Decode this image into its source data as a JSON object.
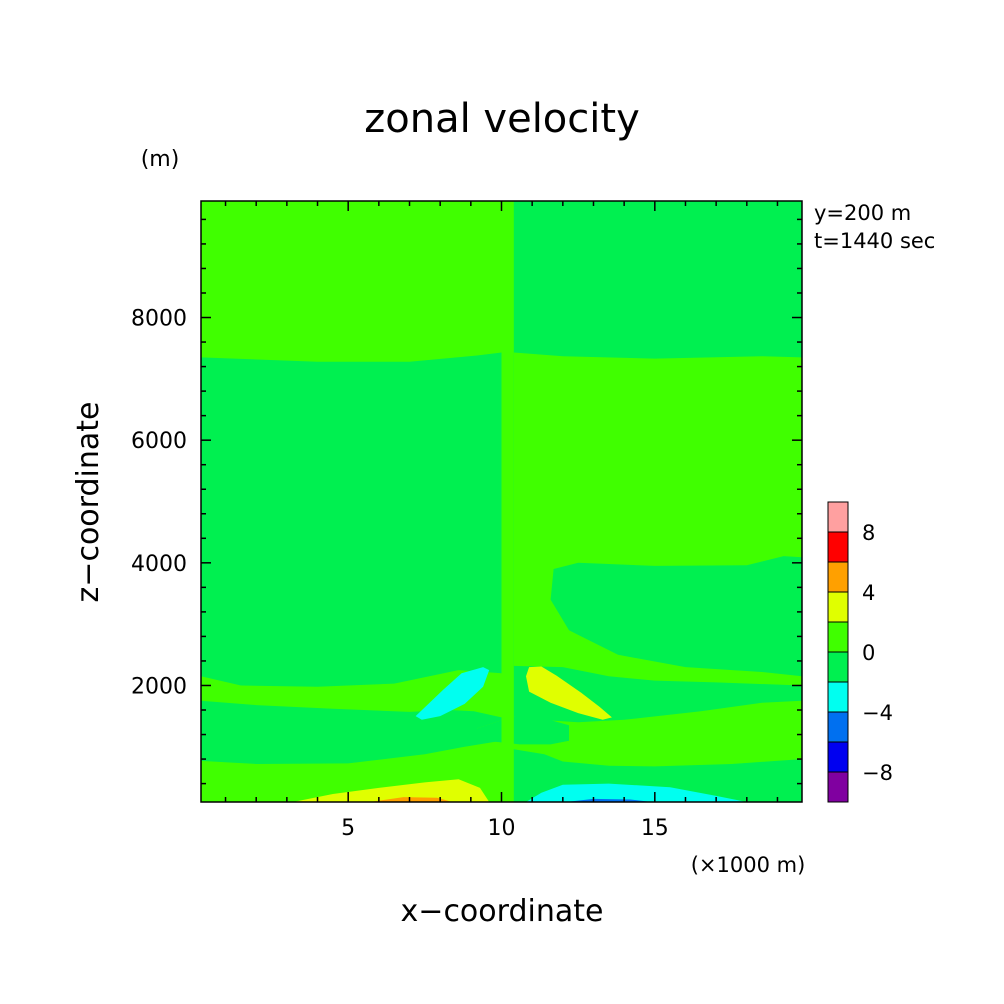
{
  "chart_data": {
    "type": "heatmap",
    "title": "zonal velocity",
    "xlabel": "x−coordinate",
    "ylabel": "z−coordinate",
    "x_unit": "(×1000 m)",
    "y_unit": "(m)",
    "info_lines": [
      "y=200 m",
      "t=1440 sec"
    ],
    "x_range": [
      0.2,
      19.8
    ],
    "y_range": [
      100,
      9900
    ],
    "x_ticks": [
      5,
      10,
      15
    ],
    "x_tick_labels": [
      "5",
      "10",
      "15"
    ],
    "y_ticks": [
      2000,
      4000,
      6000,
      8000
    ],
    "y_tick_labels": [
      "2000",
      "4000",
      "6000",
      "8000"
    ],
    "colorbar": {
      "levels": [
        -10,
        -8,
        -6,
        -4,
        -2,
        0,
        2,
        4,
        6,
        8,
        10
      ],
      "colors": [
        "#8000A0",
        "#0000F0",
        "#0070F0",
        "#00FFF0",
        "#00F050",
        "#40FF00",
        "#E0FF00",
        "#FFA000",
        "#FF0000",
        "#FFA0A0"
      ],
      "tick_values": [
        -8,
        -4,
        0,
        4,
        8
      ],
      "tick_labels": [
        "−8",
        "−4",
        "0",
        "4",
        "8"
      ]
    },
    "regions": [
      {
        "color": "#40FF00",
        "points": [
          [
            0.2,
            100
          ],
          [
            10.2,
            100
          ],
          [
            10.2,
            9900
          ],
          [
            0.2,
            9900
          ]
        ]
      },
      {
        "color": "#00F050",
        "points": [
          [
            10.2,
            100
          ],
          [
            19.8,
            100
          ],
          [
            19.8,
            9900
          ],
          [
            10.2,
            9900
          ]
        ]
      },
      {
        "color": "#00F050",
        "points": [
          [
            0.2,
            7350
          ],
          [
            4,
            7280
          ],
          [
            7,
            7280
          ],
          [
            9.2,
            7380
          ],
          [
            10,
            7430
          ],
          [
            10,
            7020
          ],
          [
            10,
            2200
          ],
          [
            8.6,
            2250
          ],
          [
            6.5,
            2030
          ],
          [
            4,
            1980
          ],
          [
            1.5,
            2000
          ],
          [
            0.2,
            2150
          ],
          [
            0.2,
            3800
          ],
          [
            0.9,
            4090
          ],
          [
            1.3,
            4100
          ],
          [
            4.3,
            4000
          ],
          [
            7.5,
            3950
          ],
          [
            8.4,
            3700
          ],
          [
            8.3,
            3000
          ],
          [
            7.5,
            2500
          ],
          [
            6,
            2350
          ],
          [
            4,
            2250
          ],
          [
            2,
            2250
          ],
          [
            0.2,
            2200
          ],
          [
            0.2,
            4050
          ],
          [
            0.2,
            7350
          ]
        ]
      },
      {
        "color": "#40FF00",
        "points": [
          [
            10.4,
            7430
          ],
          [
            12,
            7370
          ],
          [
            15,
            7330
          ],
          [
            18.5,
            7370
          ],
          [
            19.8,
            7350
          ],
          [
            19.8,
            4090
          ],
          [
            19.2,
            4110
          ],
          [
            18,
            3960
          ],
          [
            15,
            3950
          ],
          [
            12.5,
            4000
          ],
          [
            11.7,
            3900
          ],
          [
            11.6,
            3400
          ],
          [
            12.2,
            2900
          ],
          [
            13.8,
            2500
          ],
          [
            16,
            2300
          ],
          [
            18.5,
            2220
          ],
          [
            19.8,
            2150
          ],
          [
            19.8,
            2000
          ],
          [
            17,
            2050
          ],
          [
            15,
            2080
          ],
          [
            13.5,
            2150
          ],
          [
            12,
            2300
          ],
          [
            10.4,
            2320
          ]
        ]
      },
      {
        "color": "#00F050",
        "points": [
          [
            0.2,
            1750
          ],
          [
            2,
            1680
          ],
          [
            4.5,
            1620
          ],
          [
            7,
            1570
          ],
          [
            8.3,
            1600
          ],
          [
            9.1,
            1580
          ],
          [
            10,
            1480
          ],
          [
            10,
            1100
          ],
          [
            8.8,
            1000
          ],
          [
            7.5,
            880
          ],
          [
            5,
            730
          ],
          [
            2,
            720
          ],
          [
            0.2,
            770
          ]
        ]
      },
      {
        "color": "#40FF00",
        "points": [
          [
            9.2,
            1300
          ],
          [
            10.4,
            1500
          ],
          [
            11.2,
            1440
          ],
          [
            12.5,
            1400
          ],
          [
            14,
            1440
          ],
          [
            16.5,
            1580
          ],
          [
            18.5,
            1720
          ],
          [
            19.8,
            1750
          ],
          [
            19.8,
            800
          ],
          [
            17.5,
            720
          ],
          [
            15,
            680
          ],
          [
            13.5,
            690
          ],
          [
            12,
            760
          ],
          [
            11.4,
            880
          ],
          [
            10.4,
            960
          ]
        ]
      },
      {
        "color": "#00F050",
        "points": [
          [
            8.4,
            1240
          ],
          [
            9.2,
            1300
          ],
          [
            10.4,
            1500
          ],
          [
            11.5,
            1450
          ],
          [
            12.2,
            1350
          ],
          [
            12.2,
            1100
          ],
          [
            11.6,
            1040
          ],
          [
            10.6,
            1040
          ],
          [
            9.5,
            1100
          ],
          [
            8.5,
            1150
          ]
        ]
      },
      {
        "color": "#00FFF0",
        "points": [
          [
            7.2,
            1500
          ],
          [
            8.1,
            1930
          ],
          [
            8.7,
            2200
          ],
          [
            9.4,
            2300
          ],
          [
            9.6,
            2250
          ],
          [
            9.4,
            1980
          ],
          [
            8.8,
            1700
          ],
          [
            8.0,
            1500
          ],
          [
            7.4,
            1440
          ]
        ]
      },
      {
        "color": "#E0FF00",
        "points": [
          [
            10.9,
            2300
          ],
          [
            11.3,
            2310
          ],
          [
            11.8,
            2160
          ],
          [
            12.6,
            1880
          ],
          [
            13.2,
            1650
          ],
          [
            13.6,
            1480
          ],
          [
            13.3,
            1440
          ],
          [
            12.5,
            1550
          ],
          [
            11.6,
            1720
          ],
          [
            10.9,
            1900
          ],
          [
            10.8,
            2150
          ]
        ]
      },
      {
        "color": "#E0FF00",
        "points": [
          [
            3.2,
            100
          ],
          [
            4.5,
            230
          ],
          [
            6,
            330
          ],
          [
            7.5,
            420
          ],
          [
            8.6,
            470
          ],
          [
            9.3,
            330
          ],
          [
            9.6,
            100
          ]
        ]
      },
      {
        "color": "#FFA000",
        "points": [
          [
            5.7,
            100
          ],
          [
            6.8,
            180
          ],
          [
            7.9,
            170
          ],
          [
            8.4,
            100
          ]
        ]
      },
      {
        "color": "#00FFF0",
        "points": [
          [
            10.8,
            100
          ],
          [
            11.3,
            250
          ],
          [
            12,
            380
          ],
          [
            13.5,
            400
          ],
          [
            15.5,
            340
          ],
          [
            17,
            200
          ],
          [
            18,
            100
          ]
        ]
      },
      {
        "color": "#0070F0",
        "points": [
          [
            12.1,
            100
          ],
          [
            13,
            150
          ],
          [
            14.2,
            140
          ],
          [
            14.9,
            100
          ]
        ]
      },
      {
        "color": "#40FF00",
        "points": [
          [
            10,
            100
          ],
          [
            10.4,
            100
          ],
          [
            10.4,
            9900
          ],
          [
            10,
            9900
          ]
        ]
      }
    ]
  }
}
